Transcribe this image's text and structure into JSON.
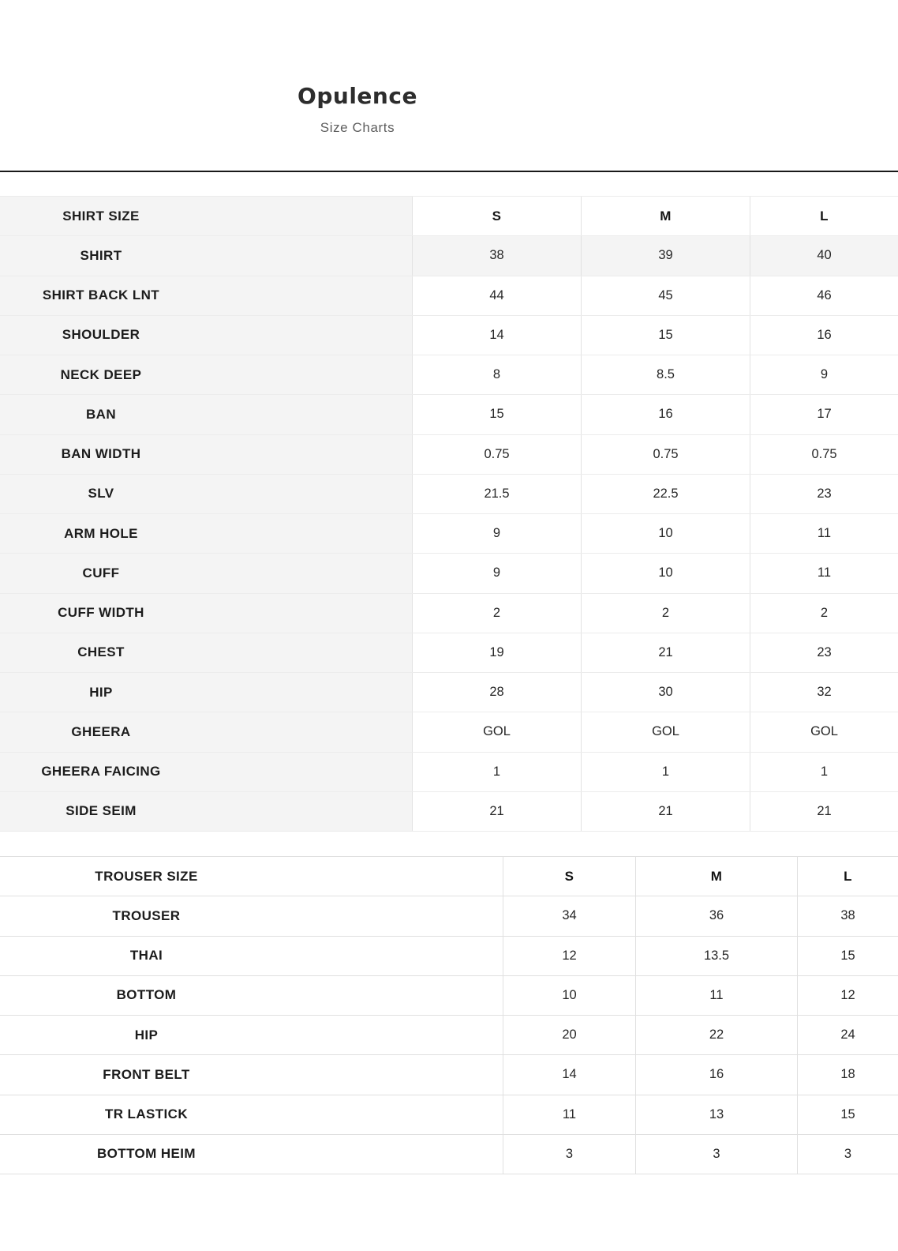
{
  "header": {
    "title": "Opulence",
    "subtitle": "Size Charts"
  },
  "tables": [
    {
      "name": "shirt",
      "header": {
        "label": "SHIRT SIZE",
        "columns": [
          "S",
          "M",
          "L"
        ]
      },
      "rows": [
        {
          "label": "SHIRT",
          "values": [
            "38",
            "39",
            "40"
          ]
        },
        {
          "label": "SHIRT BACK LNT",
          "values": [
            "44",
            "45",
            "46"
          ]
        },
        {
          "label": "SHOULDER",
          "values": [
            "14",
            "15",
            "16"
          ]
        },
        {
          "label": "NECK DEEP",
          "values": [
            "8",
            "8.5",
            "9"
          ]
        },
        {
          "label": "BAN",
          "values": [
            "15",
            "16",
            "17"
          ]
        },
        {
          "label": "BAN WIDTH",
          "values": [
            "0.75",
            "0.75",
            "0.75"
          ]
        },
        {
          "label": "SLV",
          "values": [
            "21.5",
            "22.5",
            "23"
          ]
        },
        {
          "label": "ARM HOLE",
          "values": [
            "9",
            "10",
            "11"
          ]
        },
        {
          "label": "CUFF",
          "values": [
            "9",
            "10",
            "11"
          ]
        },
        {
          "label": "CUFF WIDTH",
          "values": [
            "2",
            "2",
            "2"
          ]
        },
        {
          "label": "CHEST",
          "values": [
            "19",
            "21",
            "23"
          ]
        },
        {
          "label": "HIP",
          "values": [
            "28",
            "30",
            "32"
          ]
        },
        {
          "label": "GHEERA",
          "values": [
            "GOL",
            "GOL",
            "GOL"
          ]
        },
        {
          "label": "GHEERA FAICING",
          "values": [
            "1",
            "1",
            "1"
          ]
        },
        {
          "label": "SIDE SEIM",
          "values": [
            "21",
            "21",
            "21"
          ]
        }
      ]
    },
    {
      "name": "trouser",
      "header": {
        "label": "TROUSER SIZE",
        "columns": [
          "S",
          "M",
          "L"
        ]
      },
      "rows": [
        {
          "label": "TROUSER",
          "values": [
            "34",
            "36",
            "38"
          ]
        },
        {
          "label": "THAI",
          "values": [
            "12",
            "13.5",
            "15"
          ]
        },
        {
          "label": "BOTTOM",
          "values": [
            "10",
            "11",
            "12"
          ]
        },
        {
          "label": "HIP",
          "values": [
            "20",
            "22",
            "24"
          ]
        },
        {
          "label": "FRONT BELT",
          "values": [
            "14",
            "16",
            "18"
          ]
        },
        {
          "label": "TR LASTICK",
          "values": [
            "11",
            "13",
            "15"
          ]
        },
        {
          "label": "BOTTOM HEIM",
          "values": [
            "3",
            "3",
            "3"
          ]
        }
      ]
    }
  ],
  "colors": {
    "label_column_bg": "#f4f4f4",
    "shaded_row_bg": "#f4f4f4",
    "divider": "#191919",
    "table_border": "#e0e0e0",
    "text": "#272727"
  }
}
